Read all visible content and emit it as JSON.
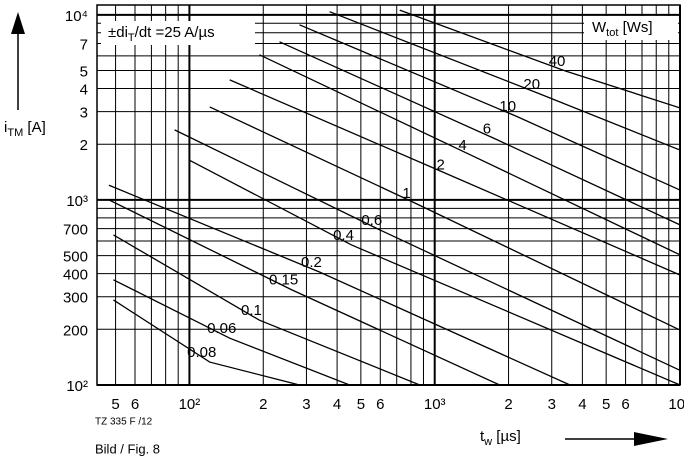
{
  "chart_data": {
    "type": "line",
    "log_x": true,
    "log_y": true,
    "grid": true,
    "annotation": {
      "main": "±di",
      "sub": "T",
      "rest": "/dt =25 A/µs"
    },
    "legend_title": {
      "main": "W",
      "sub": "tot",
      "rest": " [Ws]"
    },
    "y_label": {
      "main": "i",
      "sub": "TM",
      "rest": " [A]"
    },
    "x_label": {
      "main": "t",
      "sub": "w",
      "rest": " [µs]"
    },
    "code": "TZ 335 F /12",
    "caption": "Bild / Fig. 8",
    "xlim": [
      42,
      10000
    ],
    "ylim": [
      100,
      11300
    ],
    "xticks": [
      {
        "value": 50,
        "label": "5"
      },
      {
        "value": 60,
        "label": "6"
      },
      {
        "value": 100,
        "label": "10²"
      },
      {
        "value": 200,
        "label": "2"
      },
      {
        "value": 300,
        "label": "3"
      },
      {
        "value": 400,
        "label": "4"
      },
      {
        "value": 500,
        "label": "5"
      },
      {
        "value": 600,
        "label": "6"
      },
      {
        "value": 1000,
        "label": "10³"
      },
      {
        "value": 2000,
        "label": "2"
      },
      {
        "value": 3000,
        "label": "3"
      },
      {
        "value": 4000,
        "label": "4"
      },
      {
        "value": 5000,
        "label": "5"
      },
      {
        "value": 6000,
        "label": "6"
      },
      {
        "value": 10000,
        "label": "10⁴"
      }
    ],
    "xminor": [
      70,
      80,
      90,
      700,
      800,
      900,
      7000,
      8000,
      9000
    ],
    "yticks": [
      {
        "value": 100,
        "label": "10²"
      },
      200,
      300,
      400,
      500,
      700,
      {
        "value": 1000,
        "label": "10³"
      },
      {
        "value": 2000,
        "label": "2"
      },
      {
        "value": 3000,
        "label": "3"
      },
      {
        "value": 4000,
        "label": "4"
      },
      {
        "value": 5000,
        "label": "5"
      },
      {
        "value": 7000,
        "label": "7"
      },
      {
        "value": 10000,
        "label": "10⁴"
      }
    ],
    "yminor": [
      600,
      800,
      900,
      6000,
      8000,
      9000
    ],
    "color": "#000000",
    "series": [
      {
        "name": "40",
        "x": [
          720,
          3400,
          10000
        ],
        "values": [
          10600,
          4980,
          3140
        ]
      },
      {
        "name": "20",
        "x": [
          373,
          2680,
          10000
        ],
        "values": [
          10400,
          3740,
          1860
        ]
      },
      {
        "name": "10",
        "x": [
          281,
          2140,
          10000
        ],
        "values": [
          8830,
          2840,
          1130
        ]
      },
      {
        "name": "6",
        "x": [
          233,
          1760,
          10000
        ],
        "values": [
          7150,
          2140,
          733
        ]
      },
      {
        "name": "4",
        "x": [
          193,
          1400,
          10000
        ],
        "values": [
          6080,
          1750,
          505
        ]
      },
      {
        "name": "2",
        "x": [
          146,
          1140,
          10000
        ],
        "values": [
          4450,
          1370,
          393
        ]
      },
      {
        "name": "1",
        "x": [
          121,
          828,
          10000
        ],
        "values": [
          3180,
          964,
          198
        ]
      },
      {
        "name": "0.6",
        "x": [
          87,
          597,
          10000
        ],
        "values": [
          2390,
          689,
          120
        ]
      },
      {
        "name": "0.4",
        "x": [
          100,
          458,
          10000
        ],
        "values": [
          1640,
          571,
          100
        ]
      },
      {
        "name": "0.2",
        "x": [
          47,
          339,
          3560
        ],
        "values": [
          1200,
          408,
          100
        ]
      },
      {
        "name": "0.15",
        "x": [
          47,
          261,
          1840
        ],
        "values": [
          1000,
          327,
          100
        ]
      },
      {
        "name": "0.1",
        "x": [
          49,
          193,
          869
        ],
        "values": [
          647,
          224,
          100
        ]
      },
      {
        "name": "0.06",
        "x": [
          49,
          146,
          450
        ],
        "values": [
          370,
          179,
          100
        ]
      },
      {
        "name": "0.08",
        "x": [
          49,
          121,
          281
        ],
        "values": [
          288,
          133,
          100
        ]
      }
    ]
  }
}
